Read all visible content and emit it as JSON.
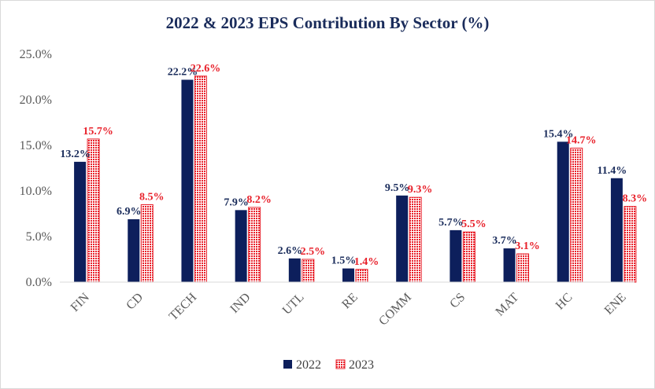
{
  "chart_data": {
    "type": "bar",
    "title": "2022 & 2023 EPS Contribution By Sector  (%)",
    "xlabel": "",
    "ylabel": "",
    "categories": [
      "FIN",
      "CD",
      "TECH",
      "IND",
      "UTL",
      "RE",
      "COMM",
      "CS",
      "MAT",
      "HC",
      "ENE"
    ],
    "series": [
      {
        "name": "2022",
        "values": [
          13.2,
          6.9,
          22.2,
          7.9,
          2.6,
          1.5,
          9.5,
          5.7,
          3.7,
          15.4,
          11.4
        ],
        "labels": [
          "13.2%",
          "6.9%",
          "22.2%",
          "7.9%",
          "2.6%",
          "1.5%",
          "9.5%",
          "5.7%",
          "3.7%",
          "15.4%",
          "11.4%"
        ]
      },
      {
        "name": "2023",
        "values": [
          15.7,
          8.5,
          22.6,
          8.2,
          2.5,
          1.4,
          9.3,
          5.5,
          3.1,
          14.7,
          8.3
        ],
        "labels": [
          "15.7%",
          "8.5%",
          "22.6%",
          "8.2%",
          "2.5%",
          "1.4%",
          "9.3%",
          "5.5%",
          "3.1%",
          "14.7%",
          "8.3%"
        ]
      }
    ],
    "ylim": [
      0,
      25
    ],
    "yticks": [
      "0.0%",
      "5.0%",
      "10.0%",
      "15.0%",
      "20.0%",
      "25.0%"
    ],
    "grid": false,
    "legend": "bottom",
    "colors": {
      "2022": "#0d1f5c",
      "2023": "#e8202a",
      "2022_label": "#1a2c5b",
      "2023_label": "#e8202a"
    }
  }
}
